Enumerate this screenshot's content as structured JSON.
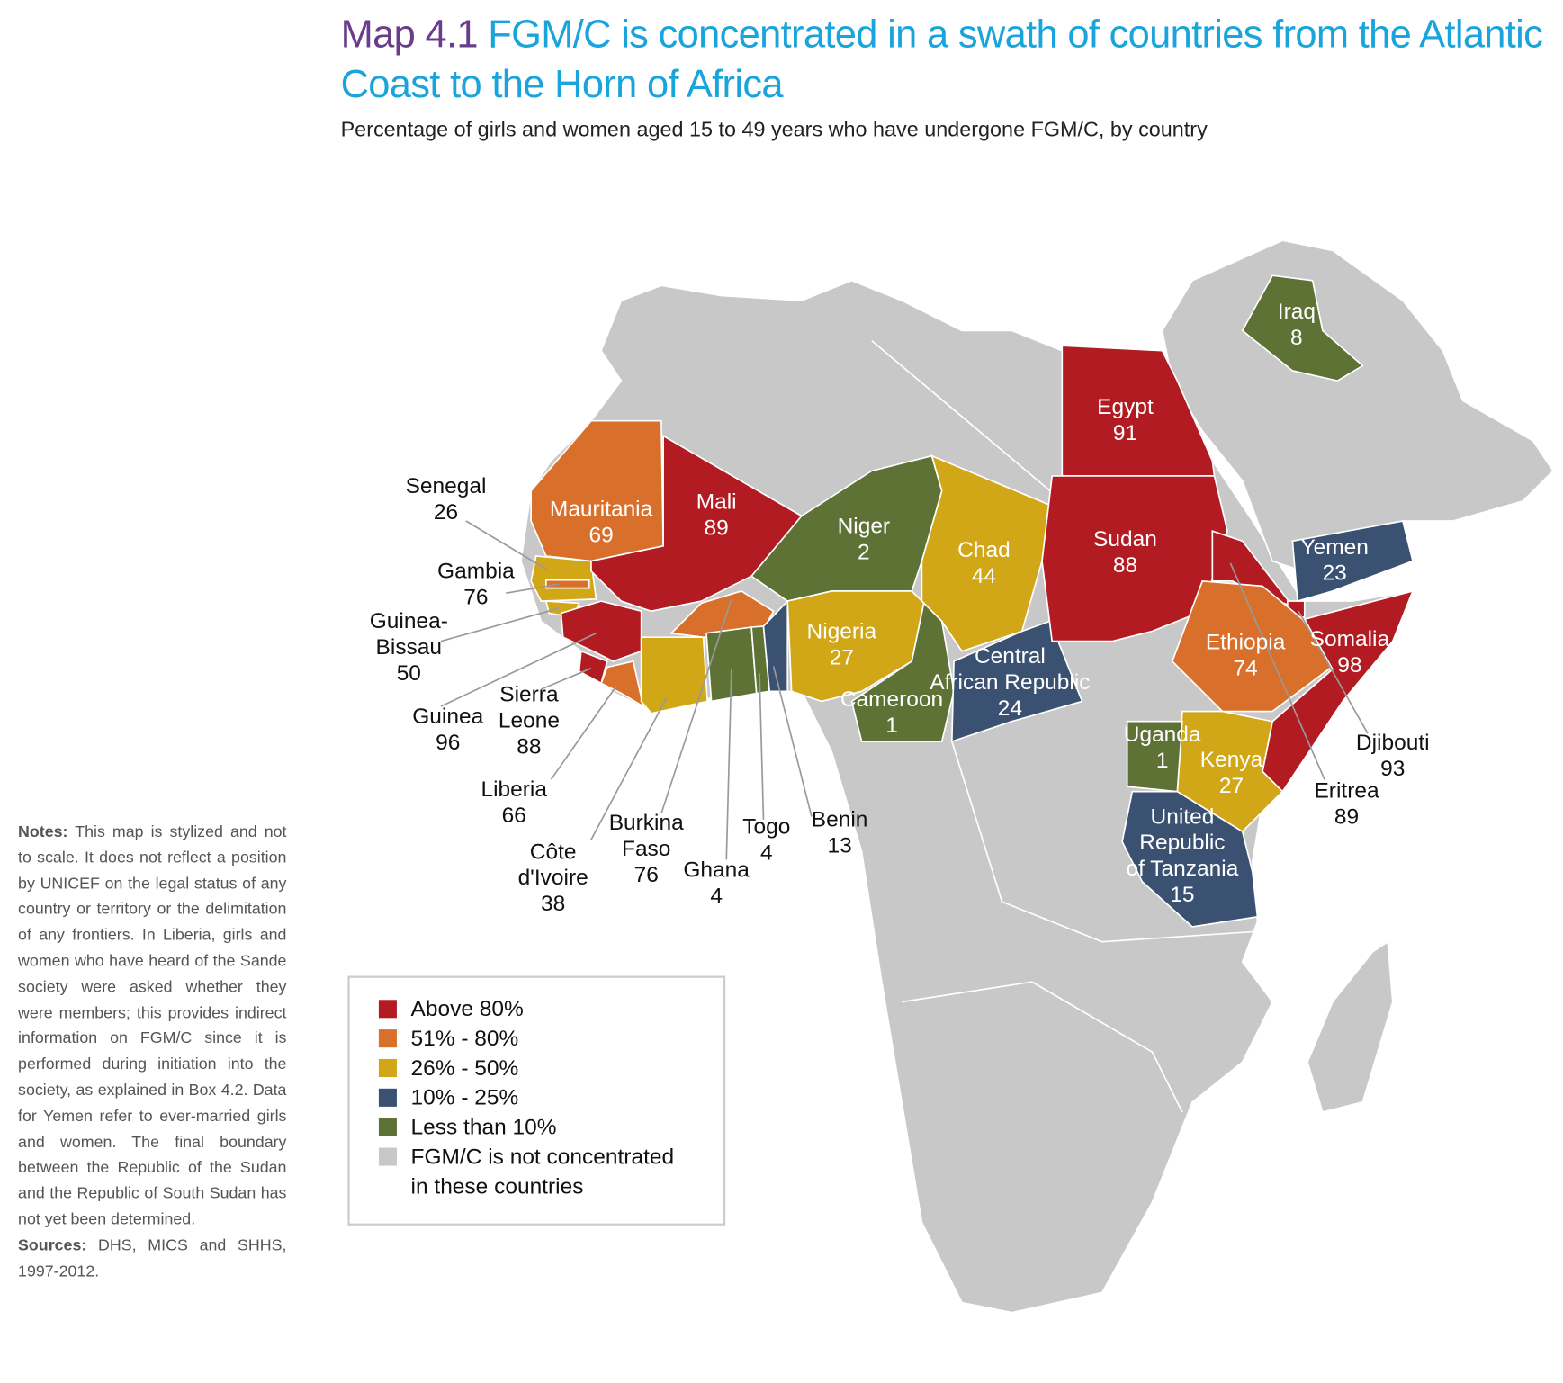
{
  "header": {
    "map_label": "Map 4.1",
    "title": "FGM/C is concentrated in a swath of countries from the Atlantic Coast to the Horn of Africa",
    "subtitle": "Percentage of girls and women aged 15 to 49 years who have undergone FGM/C, by country"
  },
  "countries": [
    {
      "name": [
        "Senegal"
      ],
      "value": 26,
      "color": "#d1a617"
    },
    {
      "name": [
        "Gambia"
      ],
      "value": 76,
      "color": "#d8702c"
    },
    {
      "name": [
        "Guinea-",
        "Bissau"
      ],
      "value": 50,
      "color": "#d1a617"
    },
    {
      "name": [
        "Guinea"
      ],
      "value": 96,
      "color": "#b31b22"
    },
    {
      "name": [
        "Sierra",
        "Leone"
      ],
      "value": 88,
      "color": "#b31b22"
    },
    {
      "name": [
        "Liberia"
      ],
      "value": 66,
      "color": "#d8702c"
    },
    {
      "name": [
        "Côte",
        "d'Ivoire"
      ],
      "value": 38,
      "color": "#d1a617"
    },
    {
      "name": [
        "Burkina",
        "Faso"
      ],
      "value": 76,
      "color": "#d8702c"
    },
    {
      "name": [
        "Ghana"
      ],
      "value": 4,
      "color": "#5e7236"
    },
    {
      "name": [
        "Togo"
      ],
      "value": 4,
      "color": "#5e7236"
    },
    {
      "name": [
        "Benin"
      ],
      "value": 13,
      "color": "#3b5172"
    },
    {
      "name": [
        "Mauritania"
      ],
      "value": 69,
      "color": "#d8702c"
    },
    {
      "name": [
        "Mali"
      ],
      "value": 89,
      "color": "#b31b22"
    },
    {
      "name": [
        "Niger"
      ],
      "value": 2,
      "color": "#5e7236"
    },
    {
      "name": [
        "Chad"
      ],
      "value": 44,
      "color": "#d1a617"
    },
    {
      "name": [
        "Nigeria"
      ],
      "value": 27,
      "color": "#d1a617"
    },
    {
      "name": [
        "Cameroon"
      ],
      "value": 1,
      "color": "#5e7236"
    },
    {
      "name": [
        "Central",
        "African Republic"
      ],
      "value": 24,
      "color": "#3b5172"
    },
    {
      "name": [
        "Egypt"
      ],
      "value": 91,
      "color": "#b31b22"
    },
    {
      "name": [
        "Sudan"
      ],
      "value": 88,
      "color": "#b31b22"
    },
    {
      "name": [
        "Eritrea"
      ],
      "value": 89,
      "color": "#b31b22"
    },
    {
      "name": [
        "Djibouti"
      ],
      "value": 93,
      "color": "#b31b22"
    },
    {
      "name": [
        "Ethiopia"
      ],
      "value": 74,
      "color": "#d8702c"
    },
    {
      "name": [
        "Somalia"
      ],
      "value": 98,
      "color": "#b31b22"
    },
    {
      "name": [
        "Kenya"
      ],
      "value": 27,
      "color": "#d1a617"
    },
    {
      "name": [
        "Uganda"
      ],
      "value": 1,
      "color": "#5e7236"
    },
    {
      "name": [
        "United",
        "Republic",
        "of Tanzania"
      ],
      "value": 15,
      "color": "#3b5172"
    },
    {
      "name": [
        "Yemen"
      ],
      "value": 23,
      "color": "#3b5172"
    },
    {
      "name": [
        "Iraq"
      ],
      "value": 8,
      "color": "#5e7236"
    }
  ],
  "legend": [
    {
      "label": [
        "Above 80%"
      ],
      "color": "#b31b22"
    },
    {
      "label": [
        "51% - 80%"
      ],
      "color": "#d8702c"
    },
    {
      "label": [
        "26% - 50%"
      ],
      "color": "#d1a617"
    },
    {
      "label": [
        "10% - 25%"
      ],
      "color": "#3b5172"
    },
    {
      "label": [
        "Less than 10%"
      ],
      "color": "#5e7236"
    },
    {
      "label": [
        "FGM/C is not concentrated",
        "in these countries"
      ],
      "color": "#c8c8c8"
    }
  ],
  "notes": {
    "label": "Notes:",
    "text": "This map is stylized and not to scale. It does not reflect a position by UNICEF on the legal status of any country or territory or the delimitation of any frontiers. In Liberia, girls and women who have heard of the Sande society were asked whether they were members; this provides indirect information on FGM/C since it is performed during initiation into the society, as explained in Box 4.2. Data for Yemen refer to ever-married girls and women. The final boundary between the Republic of the Sudan and the Republic of South Sudan has not yet been determined."
  },
  "sources": {
    "label": "Sources:",
    "text": "DHS, MICS and SHHS, 1997-2012."
  }
}
